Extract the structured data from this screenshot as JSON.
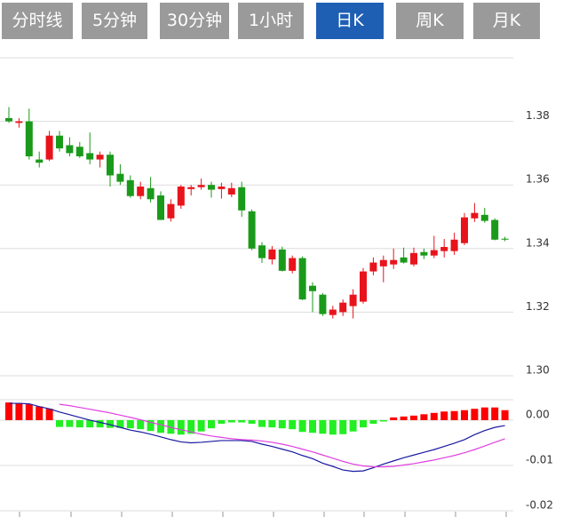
{
  "tabs": [
    {
      "label": "分时线",
      "selected": false
    },
    {
      "label": "5分钟",
      "selected": false
    },
    {
      "label": "30分钟",
      "selected": false
    },
    {
      "label": "1小时",
      "selected": false
    },
    {
      "label": "日K",
      "selected": true
    },
    {
      "label": "周K",
      "selected": false
    },
    {
      "label": "月K",
      "selected": false
    }
  ],
  "chart_data": [
    {
      "type": "candlestick",
      "open": [
        1.381,
        1.3795,
        1.38,
        1.368,
        1.368,
        1.3755,
        1.3725,
        1.372,
        1.37,
        1.368,
        1.3695,
        1.3635,
        1.3615,
        1.3565,
        1.359,
        1.3567,
        1.3495,
        1.3535,
        1.3587,
        1.3593,
        1.36,
        1.3587,
        1.357,
        1.3593,
        1.3517,
        1.341,
        1.3366,
        1.3397,
        1.333,
        1.337,
        1.3283,
        1.3255,
        1.3191,
        1.32,
        1.3219,
        1.3233,
        1.3328,
        1.3344,
        1.335,
        1.3372,
        1.335,
        1.3389,
        1.3378,
        1.3392,
        1.3392,
        1.3417,
        1.3495,
        1.3506,
        1.349,
        1.3431
      ],
      "high": [
        1.3845,
        1.381,
        1.384,
        1.3705,
        1.377,
        1.377,
        1.375,
        1.3735,
        1.3765,
        1.3705,
        1.3705,
        1.3665,
        1.363,
        1.361,
        1.3625,
        1.358,
        1.3555,
        1.36,
        1.36,
        1.362,
        1.361,
        1.3607,
        1.3607,
        1.361,
        1.3523,
        1.342,
        1.3408,
        1.3406,
        1.3378,
        1.3375,
        1.3294,
        1.326,
        1.322,
        1.324,
        1.3272,
        1.3339,
        1.3372,
        1.3378,
        1.34,
        1.3403,
        1.3403,
        1.34,
        1.344,
        1.343,
        1.345,
        1.3512,
        1.3543,
        1.3528,
        1.3495,
        1.3437
      ],
      "low": [
        1.3795,
        1.378,
        1.368,
        1.3655,
        1.3675,
        1.3705,
        1.369,
        1.3685,
        1.3665,
        1.3655,
        1.3595,
        1.36,
        1.356,
        1.3555,
        1.3545,
        1.349,
        1.3485,
        1.3525,
        1.3567,
        1.3585,
        1.356,
        1.3557,
        1.3562,
        1.35,
        1.3395,
        1.3355,
        1.335,
        1.3328,
        1.3322,
        1.3238,
        1.32,
        1.3188,
        1.318,
        1.3188,
        1.318,
        1.3227,
        1.3316,
        1.3294,
        1.3336,
        1.3353,
        1.3344,
        1.3367,
        1.337,
        1.3372,
        1.338,
        1.3411,
        1.3484,
        1.3481,
        1.3426,
        1.3423
      ],
      "close": [
        1.38,
        1.38,
        1.369,
        1.367,
        1.3755,
        1.3715,
        1.37,
        1.369,
        1.368,
        1.3695,
        1.363,
        1.361,
        1.3565,
        1.3595,
        1.3555,
        1.349,
        1.354,
        1.3595,
        1.3593,
        1.36,
        1.3585,
        1.3595,
        1.359,
        1.352,
        1.34,
        1.337,
        1.3397,
        1.333,
        1.337,
        1.324,
        1.3266,
        1.3194,
        1.3208,
        1.323,
        1.3255,
        1.3328,
        1.3356,
        1.3364,
        1.3364,
        1.3356,
        1.3386,
        1.3378,
        1.3395,
        1.3405,
        1.3428,
        1.3498,
        1.3512,
        1.3487,
        1.3428,
        1.3428
      ],
      "up_color": "#e8141c",
      "down_color": "#1a9a1a",
      "ylim": [
        1.3,
        1.4
      ],
      "yticks": [
        {
          "value": 1.3,
          "label": "1.30"
        },
        1.32,
        1.34,
        1.36,
        1.38
      ],
      "grid": true
    },
    {
      "type": "macd",
      "histogram": {
        "values": [
          0.0039,
          0.0038,
          0.0035,
          0.003,
          0.0025,
          -0.0015,
          -0.0015,
          -0.0016,
          -0.0016,
          -0.0016,
          -0.0017,
          -0.0017,
          -0.0018,
          -0.002,
          -0.0024,
          -0.0028,
          -0.003,
          -0.0032,
          -0.003,
          -0.0025,
          -0.0018,
          -0.0008,
          -0.0005,
          -0.0005,
          -0.0008,
          -0.0015,
          -0.0016,
          -0.0018,
          -0.002,
          -0.0026,
          -0.0028,
          -0.003,
          -0.0032,
          -0.0031,
          -0.0025,
          -0.0016,
          -0.0008,
          -0.0003,
          0.0006,
          0.0008,
          0.001,
          0.0013,
          0.0016,
          0.0019,
          0.002,
          0.0022,
          0.0025,
          0.0028,
          0.0028,
          0.0022
        ],
        "up_color": "#ff0000",
        "down_color": "#22ee22"
      },
      "lines": [
        {
          "color": "#1a1aa0",
          "values": [
            0.0037,
            0.0037,
            0.0036,
            0.003,
            0.0025,
            0.0018,
            0.0012,
            0.0006,
            0,
            -0.0005,
            -0.001,
            -0.0016,
            -0.0022,
            -0.0026,
            -0.0031,
            -0.0037,
            -0.0043,
            -0.0048,
            -0.005,
            -0.0049,
            -0.0047,
            -0.0045,
            -0.0045,
            -0.0045,
            -0.0047,
            -0.0053,
            -0.0058,
            -0.0064,
            -0.007,
            -0.0078,
            -0.0085,
            -0.0095,
            -0.0102,
            -0.011,
            -0.0113,
            -0.0112,
            -0.0105,
            -0.0097,
            -0.009,
            -0.0083,
            -0.0077,
            -0.0071,
            -0.0065,
            -0.0058,
            -0.0051,
            -0.0043,
            -0.0032,
            -0.0023,
            -0.0016,
            -0.0012
          ]
        },
        {
          "color": "#e040e0",
          "values": [
            null,
            null,
            null,
            null,
            null,
            0.0035,
            0.0032,
            0.0028,
            0.0024,
            0.002,
            0.0016,
            0.0011,
            0.0006,
            0.0001,
            -0.0005,
            -0.001,
            -0.0016,
            -0.0021,
            -0.0026,
            -0.0031,
            -0.0035,
            -0.0038,
            -0.0041,
            -0.0043,
            -0.0044,
            -0.0046,
            -0.0049,
            -0.0053,
            -0.0058,
            -0.0064,
            -0.007,
            -0.0077,
            -0.0084,
            -0.0091,
            -0.0097,
            -0.0101,
            -0.0103,
            -0.0103,
            -0.0102,
            -0.0099,
            -0.0096,
            -0.0092,
            -0.0088,
            -0.0083,
            -0.0078,
            -0.0072,
            -0.0065,
            -0.0057,
            -0.0049,
            -0.0041
          ]
        }
      ],
      "ylim": [
        -0.02,
        0.0045
      ],
      "yticks": [
        {
          "value": 0,
          "label": "0.00"
        },
        {
          "value": -0.01,
          "label": "-0.01"
        },
        {
          "value": -0.02,
          "label": "-0.02"
        }
      ],
      "grid": true
    }
  ]
}
